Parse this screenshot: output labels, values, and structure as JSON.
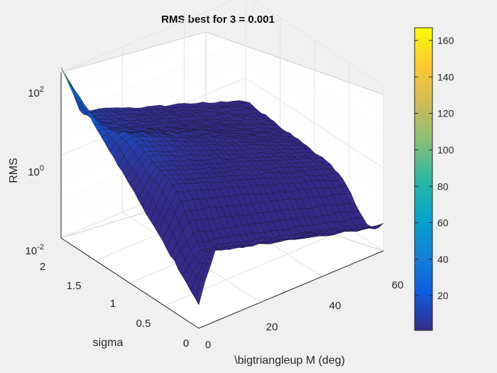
{
  "chart_data": {
    "type": "surface",
    "title": "RMS best for 3 = 0.001",
    "xlabel": "\\bigtriangleup M (deg)",
    "ylabel": "sigma",
    "zlabel": "RMS",
    "zscale": "log",
    "xlim": [
      0,
      60
    ],
    "ylim": [
      0,
      2
    ],
    "zlim": [
      0.01,
      100
    ],
    "x_ticks": [
      "0",
      "20",
      "40",
      "60"
    ],
    "y_ticks": [
      "0",
      "0.5",
      "1",
      "1.5",
      "2"
    ],
    "z_ticks": [
      {
        "base": "10",
        "exp": "2"
      },
      {
        "base": "10",
        "exp": "0"
      },
      {
        "base": "10",
        "exp": "-2"
      }
    ],
    "grid": true,
    "colormap": "parula",
    "colorbar": {
      "ticks": [
        "20",
        "40",
        "60",
        "80",
        "100",
        "120",
        "140",
        "160"
      ],
      "tick_values": [
        20,
        40,
        60,
        80,
        100,
        120,
        140,
        160
      ],
      "range": [
        1,
        167
      ],
      "colors": [
        "#352a87",
        "#0f5cdd",
        "#1481d6",
        "#06a4ca",
        "#2eb7a4",
        "#87bf77",
        "#d1bb59",
        "#fec832",
        "#f9fb0e"
      ]
    },
    "surface_features": {
      "ridge_max_rms": 130,
      "valley_min_rms": 0.02,
      "plateau_rms": 10
    }
  }
}
